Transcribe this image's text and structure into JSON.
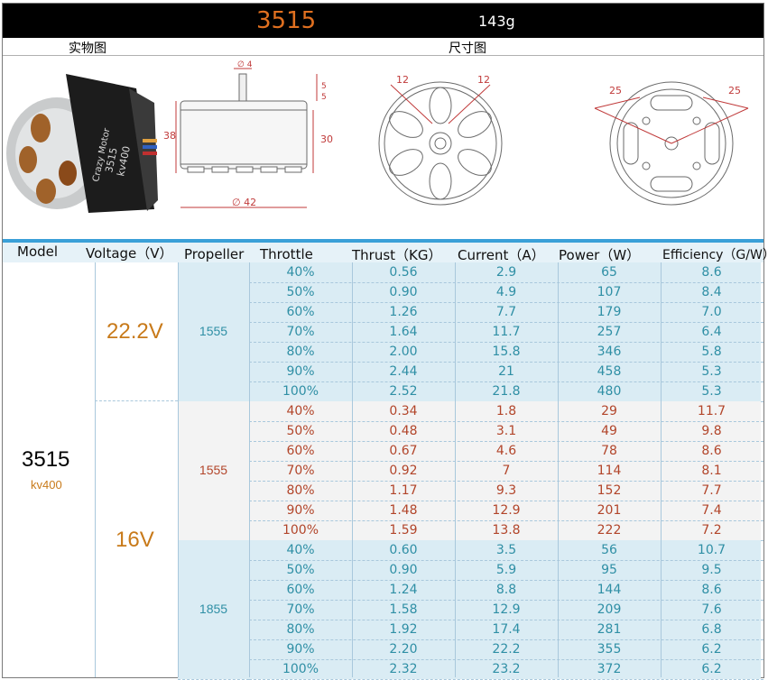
{
  "header": {
    "model": "3515",
    "weight": "143g",
    "photo_label": "实物图",
    "dimension_label": "尺寸图"
  },
  "drawing": {
    "motor_text_brand": "Crazy Motor",
    "motor_text_model": "3515",
    "motor_text_kv": "kv400",
    "dim_shaft": "∅ 4",
    "dim_top_a": "5",
    "dim_top_b": "5",
    "dim_height_left": "38",
    "dim_height_right": "30",
    "dim_diameter": "∅ 42",
    "dim_front_a": "12",
    "dim_front_b": "12",
    "dim_back_a": "25",
    "dim_back_b": "25"
  },
  "table": {
    "columns": [
      "Model",
      "Voltage（V）",
      "Propeller",
      "Throttle",
      "Thrust（KG）",
      "Current（A）",
      "Power（W）",
      "Efficiency（G/W）"
    ],
    "model": "3515",
    "model_kv": "kv400",
    "groups": [
      {
        "voltage": "22.2V",
        "propeller": "1555",
        "color": "#2f8fa5",
        "bg": "#daecf4",
        "rows": [
          [
            "40%",
            "0.56",
            "2.9",
            "65",
            "8.6"
          ],
          [
            "50%",
            "0.90",
            "4.9",
            "107",
            "8.4"
          ],
          [
            "60%",
            "1.26",
            "7.7",
            "179",
            "7.0"
          ],
          [
            "70%",
            "1.64",
            "11.7",
            "257",
            "6.4"
          ],
          [
            "80%",
            "2.00",
            "15.8",
            "346",
            "5.8"
          ],
          [
            "90%",
            "2.44",
            "21",
            "458",
            "5.3"
          ],
          [
            "100%",
            "2.52",
            "21.8",
            "480",
            "5.3"
          ]
        ]
      },
      {
        "voltage": "16V",
        "propeller": "1555",
        "color": "#b2452a",
        "bg": "#f3f3f3",
        "rows": [
          [
            "40%",
            "0.34",
            "1.8",
            "29",
            "11.7"
          ],
          [
            "50%",
            "0.48",
            "3.1",
            "49",
            "9.8"
          ],
          [
            "60%",
            "0.67",
            "4.6",
            "78",
            "8.6"
          ],
          [
            "70%",
            "0.92",
            "7",
            "114",
            "8.1"
          ],
          [
            "80%",
            "1.17",
            "9.3",
            "152",
            "7.7"
          ],
          [
            "90%",
            "1.48",
            "12.9",
            "201",
            "7.4"
          ],
          [
            "100%",
            "1.59",
            "13.8",
            "222",
            "7.2"
          ]
        ]
      },
      {
        "voltage": "",
        "propeller": "1855",
        "color": "#2f8fa5",
        "bg": "#daecf4",
        "rows": [
          [
            "40%",
            "0.60",
            "3.5",
            "56",
            "10.7"
          ],
          [
            "50%",
            "0.90",
            "5.9",
            "95",
            "9.5"
          ],
          [
            "60%",
            "1.24",
            "8.8",
            "144",
            "8.6"
          ],
          [
            "70%",
            "1.58",
            "12.9",
            "209",
            "7.6"
          ],
          [
            "80%",
            "1.92",
            "17.4",
            "281",
            "6.8"
          ],
          [
            "90%",
            "2.20",
            "22.2",
            "355",
            "6.2"
          ],
          [
            "100%",
            "2.32",
            "23.2",
            "372",
            "6.2"
          ]
        ]
      }
    ]
  }
}
